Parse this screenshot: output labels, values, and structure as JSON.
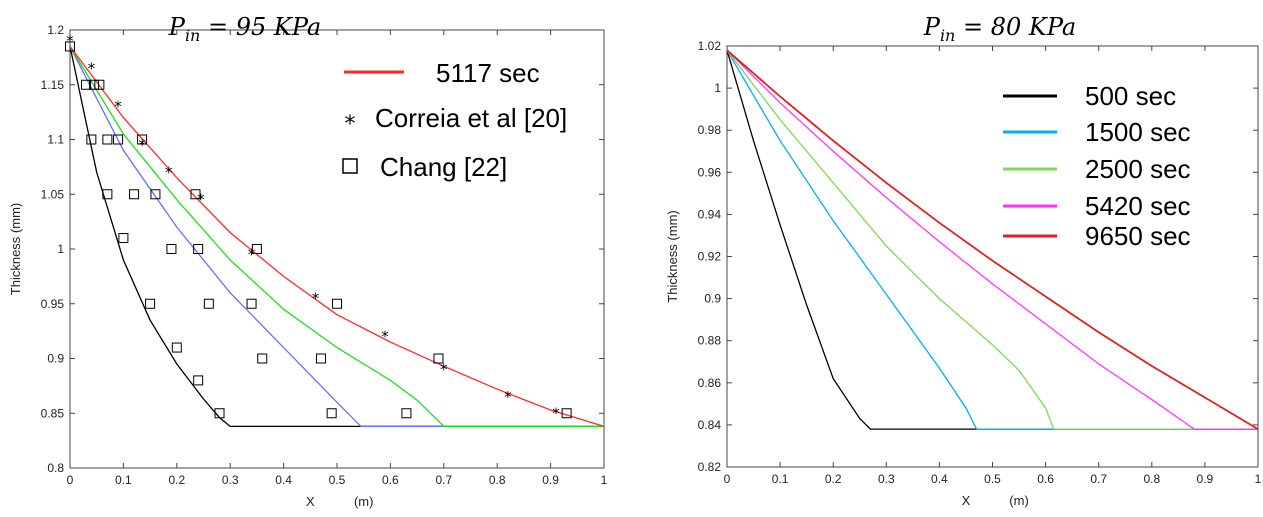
{
  "chart_data": [
    {
      "type": "line",
      "title": "P_in = 95 KPa",
      "title_main": "P",
      "title_sub": "in",
      "title_rest": " = 95 KPa",
      "xlabel": "X",
      "xunit": "(m)",
      "ylabel": "Thickness  (mm)",
      "xlim": [
        0,
        1
      ],
      "ylim": [
        0.8,
        1.2
      ],
      "xticks": [
        "0",
        "0.1",
        "0.2",
        "0.3",
        "0.4",
        "0.5",
        "0.6",
        "0.7",
        "0.8",
        "0.9",
        "1"
      ],
      "yticks": [
        "0.8",
        "0.85",
        "0.9",
        "0.95",
        "1",
        "1.05",
        "1.1",
        "1.15",
        "1.2"
      ],
      "legend_position": "top-right",
      "series": [
        {
          "color": "#000000",
          "x": [
            0,
            0.05,
            0.1,
            0.15,
            0.2,
            0.25,
            0.28,
            0.3,
            1.0
          ],
          "y": [
            1.185,
            1.07,
            0.99,
            0.935,
            0.895,
            0.863,
            0.846,
            0.838,
            0.838
          ]
        },
        {
          "color": "#6670ff",
          "x": [
            0,
            0.1,
            0.2,
            0.3,
            0.4,
            0.5,
            0.545,
            1.0
          ],
          "y": [
            1.185,
            1.09,
            1.02,
            0.96,
            0.91,
            0.86,
            0.838,
            0.838
          ]
        },
        {
          "color": "#22dd22",
          "x": [
            0,
            0.1,
            0.2,
            0.3,
            0.4,
            0.5,
            0.6,
            0.65,
            0.7,
            1.0
          ],
          "y": [
            1.185,
            1.105,
            1.045,
            0.99,
            0.945,
            0.91,
            0.88,
            0.862,
            0.838,
            0.838
          ]
        },
        {
          "name": "5117 sec",
          "color": "#ff2a2a",
          "x": [
            0,
            0.1,
            0.2,
            0.3,
            0.4,
            0.5,
            0.6,
            0.7,
            0.8,
            0.9,
            1.0
          ],
          "y": [
            1.185,
            1.12,
            1.065,
            1.015,
            0.975,
            0.94,
            0.915,
            0.893,
            0.872,
            0.853,
            0.838
          ]
        }
      ],
      "markers": [
        {
          "name": "Correia et al [20]",
          "symbol": "star",
          "x": [
            0,
            0.04,
            0.09,
            0.135,
            0.185,
            0.245,
            0.34,
            0.46,
            0.59,
            0.7,
            0.82,
            0.91
          ],
          "y": [
            1.19,
            1.165,
            1.13,
            1.095,
            1.07,
            1.045,
            0.995,
            0.955,
            0.92,
            0.89,
            0.865,
            0.85
          ]
        },
        {
          "name": "Chang [22]",
          "symbol": "square",
          "x": [
            0,
            0.03,
            0.045,
            0.055,
            0.04,
            0.07,
            0.09,
            0.135,
            0.07,
            0.12,
            0.16,
            0.235,
            0.1,
            0.19,
            0.24,
            0.35,
            0.15,
            0.26,
            0.34,
            0.5,
            0.2,
            0.36,
            0.47,
            0.24,
            0.28,
            0.49,
            0.63,
            0.69,
            0.93
          ],
          "y": [
            1.185,
            1.15,
            1.15,
            1.15,
            1.1,
            1.1,
            1.1,
            1.1,
            1.05,
            1.05,
            1.05,
            1.05,
            1.01,
            1.0,
            1.0,
            1.0,
            0.95,
            0.95,
            0.95,
            0.95,
            0.91,
            0.9,
            0.9,
            0.88,
            0.85,
            0.85,
            0.85,
            0.9,
            0.85
          ]
        }
      ]
    },
    {
      "type": "line",
      "title": "P_in = 80 KPa",
      "title_main": "P",
      "title_sub": "in",
      "title_rest": " = 80 KPa",
      "xlabel": "X",
      "xunit": "(m)",
      "ylabel": "Thickness  (mm)",
      "xlim": [
        0,
        1
      ],
      "ylim": [
        0.82,
        1.02
      ],
      "xticks": [
        "0",
        "0.1",
        "0.2",
        "0.3",
        "0.4",
        "0.5",
        "0.6",
        "0.7",
        "0.8",
        "0.9",
        "1"
      ],
      "yticks": [
        "0.82",
        "0.84",
        "0.86",
        "0.88",
        "0.9",
        "0.92",
        "0.94",
        "0.96",
        "0.98",
        "1",
        "1.02"
      ],
      "legend_position": "top-right",
      "series": [
        {
          "name": "500   sec",
          "color": "#000000",
          "x": [
            0,
            0.05,
            0.1,
            0.15,
            0.2,
            0.25,
            0.27,
            1.0
          ],
          "y": [
            1.018,
            0.975,
            0.935,
            0.897,
            0.862,
            0.843,
            0.838,
            0.838
          ]
        },
        {
          "name": "1500 sec",
          "color": "#00b0f0",
          "x": [
            0,
            0.1,
            0.2,
            0.3,
            0.4,
            0.45,
            0.47,
            1.0
          ],
          "y": [
            1.018,
            0.975,
            0.937,
            0.902,
            0.867,
            0.848,
            0.838,
            0.838
          ]
        },
        {
          "name": "2500 sec",
          "color": "#7fd957",
          "x": [
            0,
            0.1,
            0.2,
            0.3,
            0.4,
            0.5,
            0.55,
            0.6,
            0.615,
            1.0
          ],
          "y": [
            1.018,
            0.985,
            0.955,
            0.925,
            0.9,
            0.878,
            0.866,
            0.848,
            0.838,
            0.838
          ]
        },
        {
          "name": "5420 sec",
          "color": "#ff33ff",
          "x": [
            0,
            0.1,
            0.2,
            0.3,
            0.4,
            0.5,
            0.6,
            0.7,
            0.8,
            0.88,
            1.0
          ],
          "y": [
            1.018,
            0.993,
            0.97,
            0.948,
            0.927,
            0.907,
            0.888,
            0.869,
            0.852,
            0.838,
            0.838
          ]
        },
        {
          "name": "9650 sec",
          "color": "#e02020",
          "x": [
            0,
            0.1,
            0.2,
            0.3,
            0.4,
            0.5,
            0.6,
            0.7,
            0.8,
            0.9,
            1.0
          ],
          "y": [
            1.018,
            0.996,
            0.975,
            0.955,
            0.936,
            0.918,
            0.901,
            0.884,
            0.868,
            0.853,
            0.838
          ]
        }
      ]
    }
  ],
  "legend_left": [
    {
      "label": "5117 sec",
      "kind": "line",
      "color": "#ff2a2a"
    },
    {
      "label": "Correia et al [20]",
      "kind": "star"
    },
    {
      "label": "Chang [22]",
      "kind": "square"
    }
  ],
  "legend_right": [
    {
      "label": "500   sec",
      "color": "#000000"
    },
    {
      "label": "1500 sec",
      "color": "#00b0f0"
    },
    {
      "label": "2500 sec",
      "color": "#7fd957"
    },
    {
      "label": "5420 sec",
      "color": "#ff33ff"
    },
    {
      "label": "9650 sec",
      "color": "#e02020"
    }
  ]
}
